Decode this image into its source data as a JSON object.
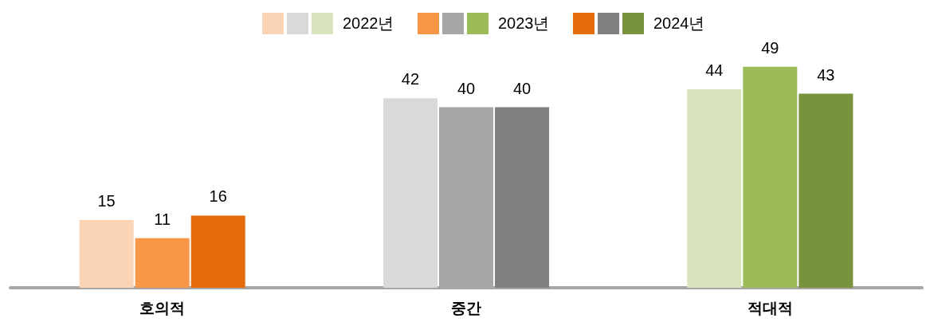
{
  "chart_data": {
    "type": "bar",
    "categories": [
      "호의적",
      "중간",
      "적대적"
    ],
    "series": [
      {
        "name": "2022년",
        "colors": [
          "#fbd3b5",
          "#d9d9d9",
          "#d8e4bd"
        ],
        "values": [
          15,
          42,
          44
        ]
      },
      {
        "name": "2023년",
        "colors": [
          "#f79646",
          "#a6a6a6",
          "#9bbb59"
        ],
        "values": [
          11,
          40,
          49
        ]
      },
      {
        "name": "2024년",
        "colors": [
          "#e46c0a",
          "#7f7f7f",
          "#77933c"
        ],
        "values": [
          16,
          40,
          43
        ]
      }
    ],
    "data_labels": true,
    "legend": "top"
  }
}
